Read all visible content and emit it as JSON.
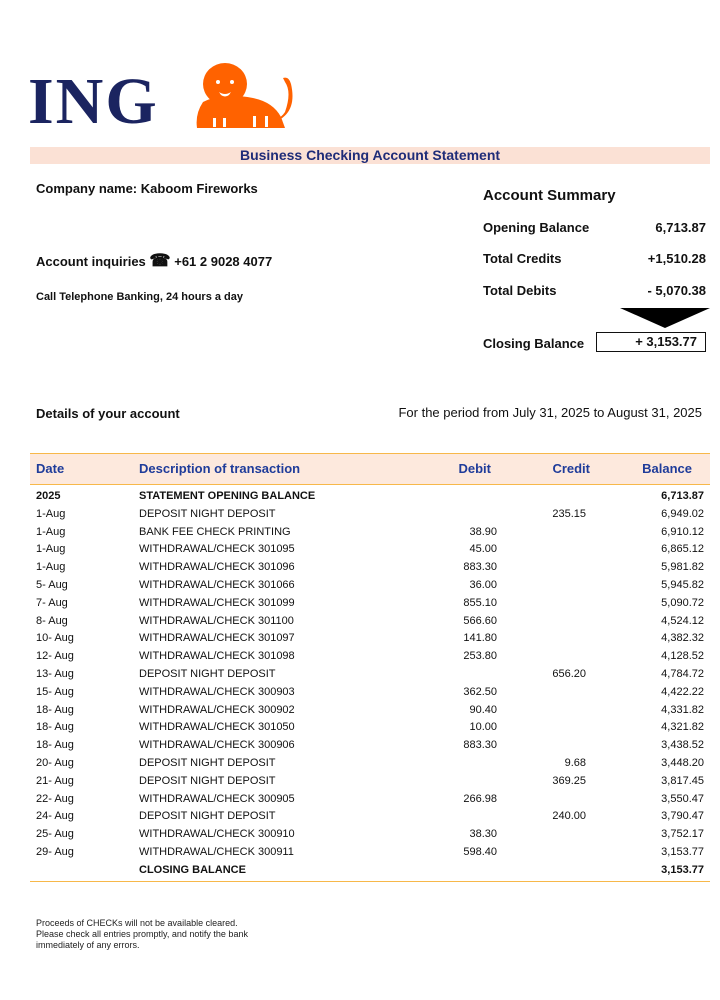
{
  "brand": {
    "name": "ING",
    "colors": {
      "navy": "#1b2460",
      "orange": "#ff6200"
    }
  },
  "title": "Business Checking Account Statement",
  "company": {
    "label": "Company name:",
    "name": "Kaboom Fireworks"
  },
  "inquiries": {
    "label": "Account inquiries",
    "icon": "telephone-icon",
    "phone": "+61 2 9028 4077",
    "note": "Call Telephone Banking, 24 hours a day"
  },
  "summary": {
    "heading": "Account Summary",
    "opening_label": "Opening Balance",
    "opening_value": "6,713.87",
    "credits_label": "Total Credits",
    "credits_value": "+1,510.28",
    "debits_label": "Total Debits",
    "debits_value": "- 5,070.38",
    "closing_label": "Closing Balance",
    "closing_value": "+ 3,153.77"
  },
  "details": {
    "label": "Details of your account",
    "period": "For the period from July 31, 2025 to August 31, 2025"
  },
  "table": {
    "headers": {
      "date": "Date",
      "desc": "Description of transaction",
      "debit": "Debit",
      "credit": "Credit",
      "balance": "Balance"
    },
    "rows": [
      {
        "date": "2025",
        "desc": "STATEMENT OPENING BALANCE",
        "debit": "",
        "credit": "",
        "balance": "6,713.87",
        "bold": true
      },
      {
        "date": "1-Aug",
        "desc": "DEPOSIT NIGHT DEPOSIT",
        "debit": "",
        "credit": "235.15",
        "balance": "6,949.02"
      },
      {
        "date": "1-Aug",
        "desc": "BANK FEE CHECK PRINTING",
        "debit": "38.90",
        "credit": "",
        "balance": "6,910.12"
      },
      {
        "date": "1-Aug",
        "desc": "WITHDRAWAL/CHECK 301095",
        "debit": "45.00",
        "credit": "",
        "balance": "6,865.12"
      },
      {
        "date": "1-Aug",
        "desc": "WITHDRAWAL/CHECK 301096",
        "debit": "883.30",
        "credit": "",
        "balance": "5,981.82"
      },
      {
        "date": "5- Aug",
        "desc": "WITHDRAWAL/CHECK 301066",
        "debit": "36.00",
        "credit": "",
        "balance": "5,945.82"
      },
      {
        "date": "7- Aug",
        "desc": "WITHDRAWAL/CHECK 301099",
        "debit": "855.10",
        "credit": "",
        "balance": "5,090.72"
      },
      {
        "date": "8- Aug",
        "desc": "WITHDRAWAL/CHECK 301100",
        "debit": "566.60",
        "credit": "",
        "balance": "4,524.12"
      },
      {
        "date": "10- Aug",
        "desc": "WITHDRAWAL/CHECK 301097",
        "debit": "141.80",
        "credit": "",
        "balance": "4,382.32"
      },
      {
        "date": "12- Aug",
        "desc": "WITHDRAWAL/CHECK 301098",
        "debit": "253.80",
        "credit": "",
        "balance": "4,128.52"
      },
      {
        "date": "13- Aug",
        "desc": "DEPOSIT NIGHT DEPOSIT",
        "debit": "",
        "credit": "656.20",
        "balance": "4,784.72"
      },
      {
        "date": "15- Aug",
        "desc": "WITHDRAWAL/CHECK 300903",
        "debit": "362.50",
        "credit": "",
        "balance": "4,422.22"
      },
      {
        "date": "18- Aug",
        "desc": "WITHDRAWAL/CHECK 300902",
        "debit": "90.40",
        "credit": "",
        "balance": "4,331.82"
      },
      {
        "date": "18- Aug",
        "desc": "WITHDRAWAL/CHECK 301050",
        "debit": "10.00",
        "credit": "",
        "balance": "4,321.82"
      },
      {
        "date": "18- Aug",
        "desc": "WITHDRAWAL/CHECK 300906",
        "debit": "883.30",
        "credit": "",
        "balance": "3,438.52"
      },
      {
        "date": "20- Aug",
        "desc": "DEPOSIT NIGHT DEPOSIT",
        "debit": "",
        "credit": "9.68",
        "balance": "3,448.20"
      },
      {
        "date": "21- Aug",
        "desc": "DEPOSIT NIGHT DEPOSIT",
        "debit": "",
        "credit": "369.25",
        "balance": "3,817.45"
      },
      {
        "date": "22- Aug",
        "desc": "WITHDRAWAL/CHECK 300905",
        "debit": "266.98",
        "credit": "",
        "balance": "3,550.47"
      },
      {
        "date": "24- Aug",
        "desc": "DEPOSIT NIGHT DEPOSIT",
        "debit": "",
        "credit": "240.00",
        "balance": "3,790.47"
      },
      {
        "date": "25- Aug",
        "desc": "WITHDRAWAL/CHECK 300910",
        "debit": "38.30",
        "credit": "",
        "balance": "3,752.17"
      },
      {
        "date": "29- Aug",
        "desc": "WITHDRAWAL/CHECK 300911",
        "debit": "598.40",
        "credit": "",
        "balance": "3,153.77"
      },
      {
        "date": "",
        "desc": "CLOSING BALANCE",
        "debit": "",
        "credit": "",
        "balance": "3,153.77",
        "bold": true
      }
    ]
  },
  "footer_note": "Proceeds of CHECKs will not be available cleared. Please check all entries promptly, and notify the bank immediately of any errors."
}
